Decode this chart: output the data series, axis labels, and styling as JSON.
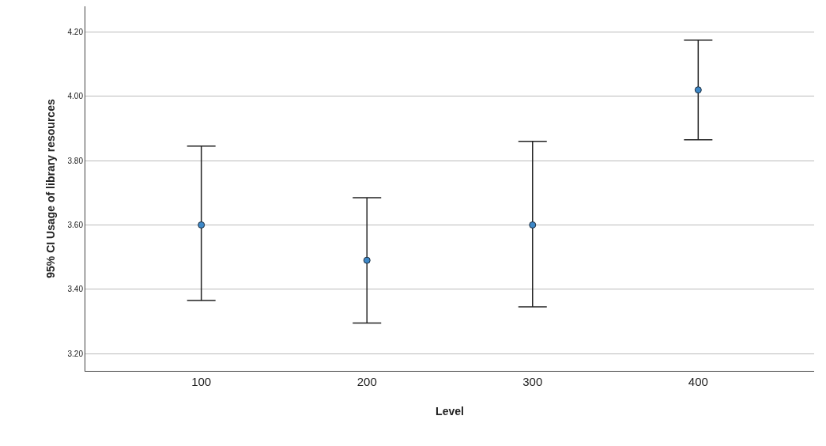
{
  "chart_data": {
    "type": "scatter",
    "xlabel": "Level",
    "ylabel": "95% CI Usage of library resources",
    "categories": [
      "100",
      "200",
      "300",
      "400"
    ],
    "series": [
      {
        "color": "#3d88c8",
        "values": [
          3.6,
          3.49,
          3.6,
          4.02
        ],
        "errors": [
          [
            3.365,
            3.845
          ],
          [
            3.295,
            3.685
          ],
          [
            3.345,
            3.86
          ],
          [
            3.865,
            4.175
          ]
        ]
      }
    ],
    "ylim": [
      3.146,
      4.28
    ],
    "yticks": [
      {
        "value": 3.2,
        "label": "3.20"
      },
      {
        "value": 3.4,
        "label": "3.40"
      },
      {
        "value": 3.6,
        "label": "3.60"
      },
      {
        "value": 3.8,
        "label": "3.80"
      },
      {
        "value": 4.0,
        "label": "4.00"
      },
      {
        "value": 4.2,
        "label": "4.20"
      }
    ],
    "grid": "y",
    "marker": "circle"
  }
}
